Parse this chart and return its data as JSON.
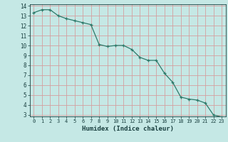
{
  "x": [
    0,
    1,
    2,
    3,
    4,
    5,
    6,
    7,
    8,
    9,
    10,
    11,
    12,
    13,
    14,
    15,
    16,
    17,
    18,
    19,
    20,
    21,
    22,
    23
  ],
  "y": [
    13.3,
    13.6,
    13.6,
    13.0,
    12.7,
    12.5,
    12.3,
    12.1,
    10.1,
    9.9,
    10.0,
    10.0,
    9.6,
    8.8,
    8.5,
    8.5,
    7.2,
    6.3,
    4.8,
    4.6,
    4.5,
    4.2,
    3.0,
    2.8
  ],
  "xlabel": "Humidex (Indice chaleur)",
  "ylim": [
    3,
    14
  ],
  "xlim": [
    -0.5,
    23.5
  ],
  "yticks": [
    3,
    4,
    5,
    6,
    7,
    8,
    9,
    10,
    11,
    12,
    13,
    14
  ],
  "xticks": [
    0,
    1,
    2,
    3,
    4,
    5,
    6,
    7,
    8,
    9,
    10,
    11,
    12,
    13,
    14,
    15,
    16,
    17,
    18,
    19,
    20,
    21,
    22,
    23
  ],
  "line_color": "#2d7a6a",
  "bg_color": "#c5e8e5",
  "grid_major_color": "#f0c8c8",
  "grid_minor_color": "#d8e8e5",
  "font_color": "#1a4040"
}
